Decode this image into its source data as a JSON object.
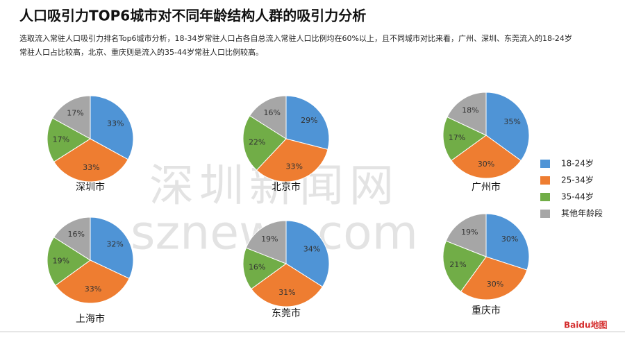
{
  "header": {
    "title": "人口吸引力TOP6城市对不同年龄结构人群的吸引力分析",
    "description": [
      "选取流入常驻人口吸引力排名Top6城市分析，18-34岁常驻人口占各自总流入常驻人口比例均在60%以上，且不同城市对比来看，广州、深圳、东莞流入的18-24岁",
      "常驻人口占比较高，北京、重庆则是流入的35-44岁常驻人口比例较高。"
    ]
  },
  "legend": {
    "items": [
      {
        "name": "18-24岁",
        "color": "#4f94d6"
      },
      {
        "name": "25-34岁",
        "color": "#ee7d31"
      },
      {
        "name": "35-44岁",
        "color": "#71ad47"
      },
      {
        "name": "其他年龄段",
        "color": "#a6a6a6"
      }
    ]
  },
  "chart_data": [
    {
      "type": "pie",
      "title": "深圳市",
      "values": [
        33,
        33,
        17,
        17
      ],
      "value_labels": [
        "33%",
        "33%",
        "17%",
        "17%"
      ]
    },
    {
      "type": "pie",
      "title": "北京市",
      "values": [
        29,
        33,
        22,
        16
      ],
      "value_labels": [
        "29%",
        "33%",
        "22%",
        "16%"
      ]
    },
    {
      "type": "pie",
      "title": "广州市",
      "values": [
        35,
        30,
        17,
        18
      ],
      "value_labels": [
        "35%",
        "30%",
        "17%",
        "18%"
      ]
    },
    {
      "type": "pie",
      "title": "上海市",
      "values": [
        32,
        33,
        19,
        16
      ],
      "value_labels": [
        "32%",
        "33%",
        "19%",
        "16%"
      ]
    },
    {
      "type": "pie",
      "title": "东莞市",
      "values": [
        34,
        31,
        16,
        19
      ],
      "value_labels": [
        "34%",
        "31%",
        "16%",
        "19%"
      ]
    },
    {
      "type": "pie",
      "title": "重庆市",
      "values": [
        30,
        30,
        21,
        19
      ],
      "value_labels": [
        "30%",
        "30%",
        "21%",
        "19%"
      ]
    }
  ],
  "watermark": [
    "深圳新闻网",
    "sznews.com"
  ],
  "logo": "Baidu地图"
}
